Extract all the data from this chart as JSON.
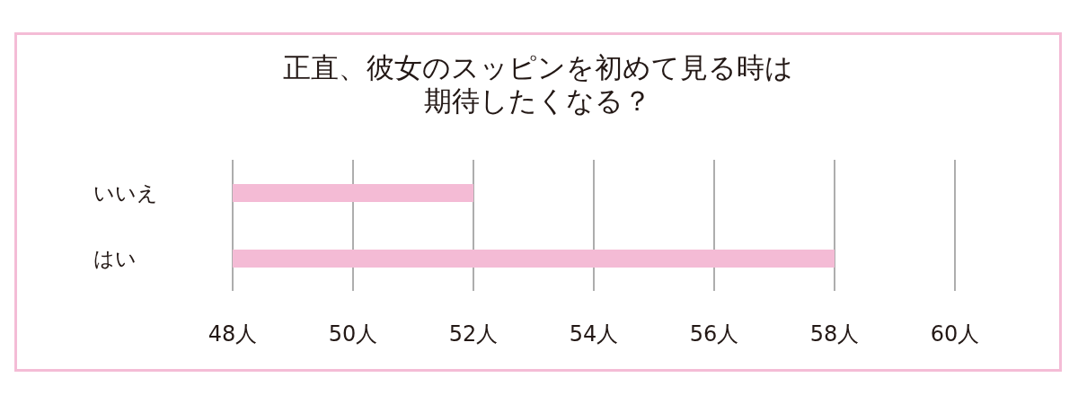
{
  "chart_data": {
    "type": "bar",
    "orientation": "horizontal",
    "title": "正直、彼女のスッピンを初めて見る時は期待したくなる？",
    "categories": [
      "いいえ",
      "はい"
    ],
    "values": [
      52,
      58
    ],
    "color": "#f4bbd5",
    "xlim": [
      48,
      60
    ],
    "xticks": [
      {
        "value": 48,
        "label": "48人"
      },
      {
        "value": 50,
        "label": "50人"
      },
      {
        "value": 52,
        "label": "52人"
      },
      {
        "value": 54,
        "label": "54人"
      },
      {
        "value": 56,
        "label": "56人"
      },
      {
        "value": 58,
        "label": "58人"
      },
      {
        "value": 60,
        "label": "60人"
      }
    ],
    "grid": "x"
  }
}
